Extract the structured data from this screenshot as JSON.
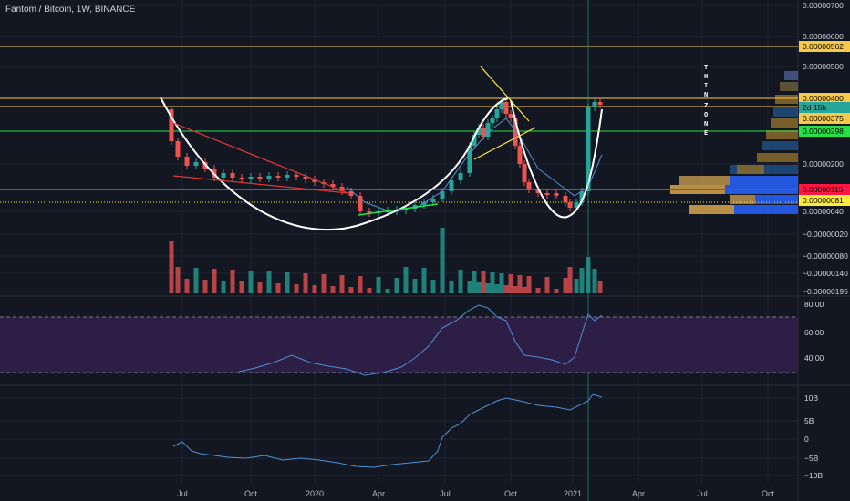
{
  "title": "Fantom / Bitcoin, 1W, BINANCE",
  "price_axis": {
    "labels": [
      "0.00000700",
      "0.00000600",
      "0.00000500",
      "0.00000200",
      "0.00000040",
      "−0.00000020",
      "−0.00000080",
      "−0.00000140",
      "−0.00000195"
    ]
  },
  "price_tags": [
    {
      "label": "0.00000562",
      "color": "#f7c948"
    },
    {
      "label": "0.00000400",
      "color": "#f7c948"
    },
    {
      "label": "2d 15h",
      "color": "#26a69a"
    },
    {
      "label": "0.00000375",
      "color": "#f7c948"
    },
    {
      "label": "0.00000298",
      "color": "#26e04a"
    },
    {
      "label": "0.00000115",
      "color": "#ff1744"
    },
    {
      "label": "0.00000081",
      "color": "#ffeb3b"
    }
  ],
  "rsi_axis": {
    "labels": [
      "80.00",
      "60.00",
      "40.00"
    ]
  },
  "obv_axis": {
    "labels": [
      "10B",
      "5B",
      "0",
      "−5B",
      "−10B"
    ]
  },
  "time_axis": {
    "labels": [
      "Jul",
      "Oct",
      "2020",
      "Apr",
      "Jul",
      "Oct",
      "2021",
      "Apr",
      "Jul",
      "Oct"
    ]
  },
  "annotations": {
    "thin_zone": [
      "T",
      "H",
      "I",
      "N",
      "Z",
      "O",
      "N",
      "E"
    ]
  },
  "colors": {
    "background": "#131722",
    "up": "#26a69a",
    "down": "#ef5350",
    "rsi_band": "#2d1e45",
    "line": "#4f8fd6"
  }
}
